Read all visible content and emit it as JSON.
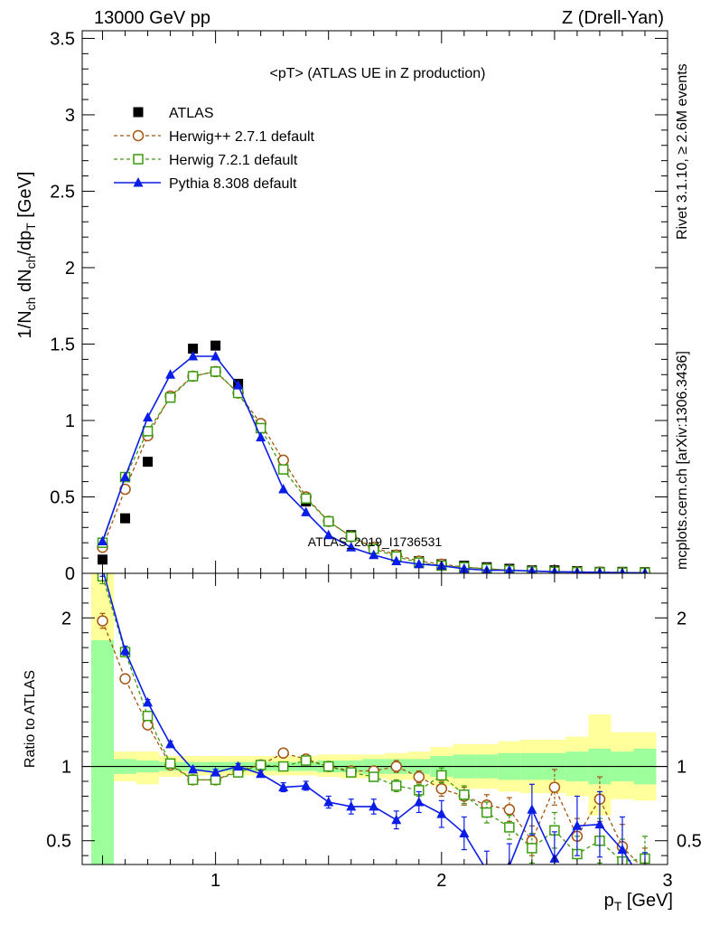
{
  "header": {
    "left": "13000 GeV pp",
    "right": "Z (Drell-Yan)"
  },
  "plot_title": "<pT> (ATLAS UE in Z production)",
  "side_text": {
    "rivet": "Rivet 3.1.10, ≥ 2.6M events",
    "source": "mcplots.cern.ch [arXiv:1306.3436]"
  },
  "watermark": "ATLAS_2019_I1736531",
  "colors": {
    "atlas": "#000000",
    "herwigpp": "#a45512",
    "herwig7": "#3c9b0f",
    "pythia": "#0a1de6",
    "band_green": "#9cff9c",
    "band_yellow": "#ffff9c"
  },
  "chart_data": [
    {
      "type": "line",
      "panel": "main",
      "ylabel": "1/N_ch dN_ch/dp_T [GeV]",
      "xlim": [
        0.41,
        3.0
      ],
      "ylim": [
        0,
        3.55
      ],
      "x_ticks": [],
      "y_ticks": [
        "0",
        "0.5",
        "1",
        "1.5",
        "2",
        "2.5",
        "3",
        "3.5"
      ],
      "legend_position": "top-left",
      "x": [
        0.5,
        0.6,
        0.7,
        0.8,
        0.9,
        1.0,
        1.1,
        1.2,
        1.3,
        1.4,
        1.5,
        1.6,
        1.7,
        1.8,
        1.9,
        2.0,
        2.1,
        2.2,
        2.3,
        2.4,
        2.5,
        2.6,
        2.7,
        2.8,
        2.9
      ],
      "series": [
        {
          "name": "ATLAS",
          "marker": "square-filled",
          "values": [
            0.09,
            0.36,
            0.73,
            1.15,
            1.47,
            1.49,
            1.24,
            0.97,
            0.68,
            0.47,
            0.34,
            0.25,
            0.17,
            0.12,
            0.08,
            0.06,
            0.05,
            0.04,
            0.03,
            0.02,
            0.02,
            0.015,
            0.01,
            0.01,
            0.008
          ]
        },
        {
          "name": "Herwig++ 2.7.1 default",
          "marker": "circle-open",
          "dashed": true,
          "values": [
            0.17,
            0.55,
            0.9,
            1.16,
            1.29,
            1.32,
            1.18,
            0.98,
            0.74,
            0.5,
            0.34,
            0.24,
            0.17,
            0.12,
            0.08,
            0.06,
            0.04,
            0.03,
            0.02,
            0.015,
            0.012,
            0.01,
            0.008,
            0.006,
            0.004
          ]
        },
        {
          "name": "Herwig 7.2.1 default",
          "marker": "square-open",
          "dashed": true,
          "values": [
            0.2,
            0.63,
            0.93,
            1.15,
            1.29,
            1.32,
            1.18,
            0.95,
            0.68,
            0.49,
            0.34,
            0.24,
            0.16,
            0.11,
            0.07,
            0.05,
            0.04,
            0.03,
            0.02,
            0.012,
            0.01,
            0.008,
            0.006,
            0.005,
            0.004
          ]
        },
        {
          "name": "Pythia 8.308 default",
          "marker": "triangle-filled",
          "dashed": false,
          "values": [
            0.21,
            0.63,
            1.02,
            1.3,
            1.42,
            1.42,
            1.23,
            0.89,
            0.55,
            0.4,
            0.25,
            0.17,
            0.12,
            0.08,
            0.06,
            0.05,
            0.03,
            0.02,
            0.02,
            0.015,
            0.01,
            0.008,
            0.006,
            0.004,
            0.003
          ]
        }
      ]
    },
    {
      "type": "line",
      "panel": "ratio",
      "ylabel": "Ratio to ATLAS",
      "xlabel": "p_T [GeV]",
      "xlim": [
        0.41,
        3.0
      ],
      "ylim": [
        0.34,
        2.3
      ],
      "x_ticks": [
        "1",
        "2",
        "3"
      ],
      "y_ticks": [
        "0.5",
        "1",
        "2"
      ],
      "reference_line": 1,
      "x": [
        0.5,
        0.6,
        0.7,
        0.8,
        0.9,
        1.0,
        1.1,
        1.2,
        1.3,
        1.4,
        1.5,
        1.6,
        1.7,
        1.8,
        1.9,
        2.0,
        2.1,
        2.2,
        2.3,
        2.4,
        2.5,
        2.6,
        2.7,
        2.8,
        2.9
      ],
      "bands": {
        "stat_low": [
          0.3,
          0.95,
          0.96,
          0.97,
          0.97,
          0.97,
          0.97,
          0.97,
          0.97,
          0.97,
          0.96,
          0.96,
          0.95,
          0.95,
          0.95,
          0.93,
          0.92,
          0.92,
          0.91,
          0.91,
          0.91,
          0.9,
          0.88,
          0.9,
          0.88
        ],
        "stat_high": [
          1.85,
          1.05,
          1.04,
          1.03,
          1.03,
          1.03,
          1.03,
          1.03,
          1.03,
          1.03,
          1.04,
          1.04,
          1.05,
          1.05,
          1.05,
          1.07,
          1.08,
          1.08,
          1.09,
          1.09,
          1.09,
          1.1,
          1.12,
          1.1,
          1.12
        ],
        "total_low": [
          0.3,
          0.9,
          0.88,
          0.93,
          0.94,
          0.94,
          0.94,
          0.94,
          0.94,
          0.94,
          0.93,
          0.92,
          0.92,
          0.91,
          0.91,
          0.87,
          0.85,
          0.85,
          0.83,
          0.82,
          0.82,
          0.8,
          0.67,
          0.78,
          0.77
        ],
        "total_high": [
          2.3,
          1.1,
          1.1,
          1.07,
          1.07,
          1.07,
          1.07,
          1.07,
          1.07,
          1.07,
          1.08,
          1.08,
          1.08,
          1.09,
          1.1,
          1.13,
          1.15,
          1.15,
          1.17,
          1.18,
          1.18,
          1.2,
          1.35,
          1.23,
          1.23
        ]
      },
      "series": [
        {
          "name": "Herwig++ 2.7.1 default",
          "values": [
            1.98,
            1.59,
            1.28,
            1.01,
            0.91,
            0.91,
            0.97,
            1.01,
            1.09,
            1.05,
            1.0,
            0.97,
            0.97,
            1.0,
            0.93,
            0.85,
            0.8,
            0.74,
            0.71,
            0.5,
            0.86,
            0.53,
            0.78,
            0.46,
            0.3
          ],
          "errors": [
            0.05,
            0.03,
            0.02,
            0.02,
            0.02,
            0.02,
            0.02,
            0.02,
            0.02,
            0.02,
            0.02,
            0.03,
            0.03,
            0.04,
            0.04,
            0.05,
            0.06,
            0.07,
            0.08,
            0.1,
            0.12,
            0.12,
            0.15,
            0.15,
            0.15
          ]
        },
        {
          "name": "Herwig 7.2.1 default",
          "values": [
            2.28,
            1.77,
            1.34,
            1.02,
            0.91,
            0.91,
            0.96,
            1.01,
            1.0,
            1.04,
            1.0,
            0.96,
            0.93,
            0.87,
            0.84,
            0.94,
            0.81,
            0.69,
            0.59,
            0.45,
            0.57,
            0.41,
            0.5,
            0.36,
            0.38
          ],
          "errors": [
            0.05,
            0.03,
            0.02,
            0.02,
            0.02,
            0.02,
            0.02,
            0.02,
            0.02,
            0.02,
            0.02,
            0.03,
            0.03,
            0.04,
            0.04,
            0.05,
            0.06,
            0.07,
            0.08,
            0.1,
            0.12,
            0.12,
            0.15,
            0.15,
            0.15
          ]
        },
        {
          "name": "Pythia 8.308 default",
          "values": [
            2.33,
            1.78,
            1.43,
            1.15,
            0.98,
            0.96,
            1.0,
            0.95,
            0.86,
            0.87,
            0.76,
            0.73,
            0.73,
            0.64,
            0.76,
            0.68,
            0.55,
            0.3,
            0.33,
            0.71,
            0.38,
            0.6,
            0.61,
            0.44,
            0.2
          ],
          "errors": [
            0.05,
            0.03,
            0.02,
            0.02,
            0.02,
            0.02,
            0.02,
            0.02,
            0.03,
            0.03,
            0.04,
            0.05,
            0.05,
            0.06,
            0.07,
            0.09,
            0.11,
            0.13,
            0.15,
            0.17,
            0.18,
            0.2,
            0.22,
            0.22,
            0.22
          ]
        }
      ]
    }
  ]
}
